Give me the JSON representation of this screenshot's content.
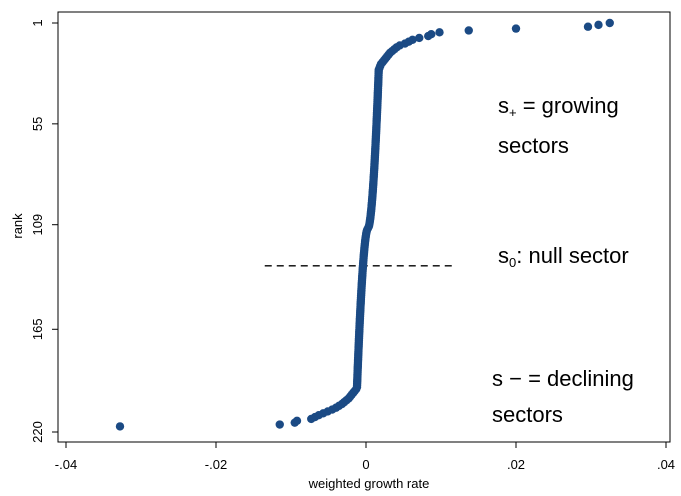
{
  "chart_data": {
    "type": "scatter",
    "xlabel": "weighted growth rate",
    "ylabel": "rank",
    "xlim": [
      -0.04,
      0.04
    ],
    "ylim": [
      1,
      220
    ],
    "y_reversed": true,
    "x_ticks": [
      -0.04,
      -0.02,
      0,
      0.02,
      0.04
    ],
    "x_tick_labels": [
      "-.04",
      "-.02",
      "0",
      ".02",
      ".04"
    ],
    "y_ticks": [
      1,
      55,
      109,
      165,
      220
    ],
    "y_tick_labels": [
      "1",
      "55",
      "109",
      "165",
      "220"
    ],
    "marker_color": "#1b4a84",
    "grid": false,
    "annotations": {
      "growing": {
        "line1_prefix": "s",
        "line1_sub": "+",
        "line1_suffix": " = growing",
        "line2": "sectors"
      },
      "null": {
        "prefix": "s",
        "sub": "0",
        "suffix": ": null sector"
      },
      "declining": {
        "line1": "s − = declining",
        "line2": "sectors"
      }
    },
    "null_line": {
      "x_start": -0.0135,
      "x_end": 0.0115,
      "y": 131
    },
    "points": [
      [
        0.0325,
        1
      ],
      [
        0.031,
        2
      ],
      [
        0.0296,
        3
      ],
      [
        0.02,
        4
      ],
      [
        0.0137,
        5
      ],
      [
        0.0098,
        6
      ],
      [
        0.0087,
        7
      ],
      [
        0.0083,
        8
      ],
      [
        0.0071,
        9
      ],
      [
        0.0062,
        10
      ],
      [
        0.0057,
        11
      ],
      [
        0.0052,
        12
      ],
      [
        0.0045,
        13
      ],
      [
        0.0041,
        14
      ],
      [
        0.0038,
        15
      ],
      [
        0.0035,
        16
      ],
      [
        0.0032,
        17
      ],
      [
        0.003,
        18
      ],
      [
        0.0028,
        19
      ],
      [
        0.0026,
        20
      ],
      [
        0.0024,
        21
      ],
      [
        0.0022,
        22
      ],
      [
        0.002,
        23
      ],
      [
        0.0019,
        24
      ],
      [
        0.0018,
        25
      ],
      [
        -0.0013,
        197
      ],
      [
        -0.0015,
        198
      ],
      [
        -0.0017,
        199
      ],
      [
        -0.0019,
        200
      ],
      [
        -0.0021,
        201
      ],
      [
        -0.0023,
        202
      ],
      [
        -0.0026,
        203
      ],
      [
        -0.0029,
        204
      ],
      [
        -0.0032,
        205
      ],
      [
        -0.0036,
        206
      ],
      [
        -0.004,
        207
      ],
      [
        -0.0045,
        208
      ],
      [
        -0.0051,
        209
      ],
      [
        -0.0057,
        210
      ],
      [
        -0.0063,
        211
      ],
      [
        -0.0068,
        212
      ],
      [
        -0.0073,
        213
      ],
      [
        -0.0092,
        214
      ],
      [
        -0.0095,
        215
      ],
      [
        -0.0115,
        216
      ],
      [
        -0.0328,
        217
      ]
    ],
    "core_points": {
      "rank_start": 26,
      "rank_end": 196,
      "x_at_start": 0.0017,
      "x_at_end": -0.0012
    }
  }
}
